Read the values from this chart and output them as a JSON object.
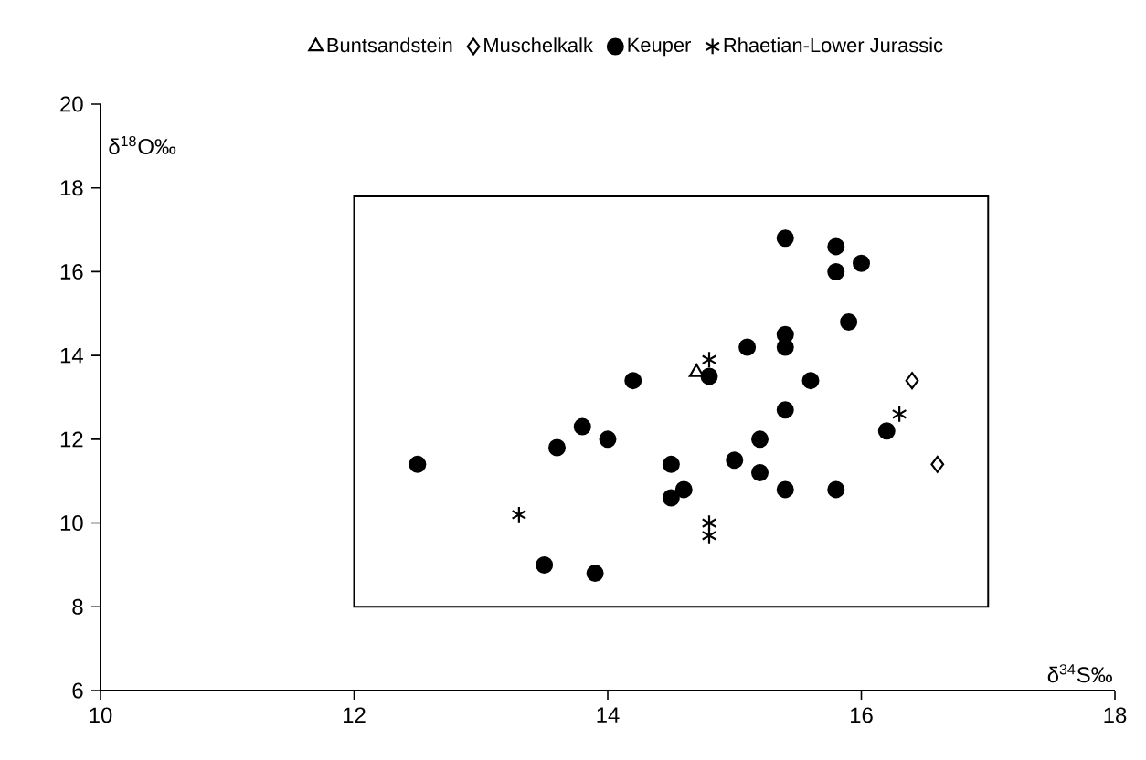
{
  "chart_data": {
    "type": "scatter",
    "xlabel": "δ$^{34}$S‰",
    "ylabel": "δ$^{18}$O‰",
    "xlim": [
      10,
      18
    ],
    "ylim": [
      6,
      20
    ],
    "xticks": [
      10,
      12,
      14,
      16,
      18
    ],
    "yticks": [
      6,
      8,
      10,
      12,
      14,
      16,
      18,
      20
    ],
    "grid": false,
    "legend": "top",
    "series": [
      {
        "name": "Buntsandstein",
        "color": "#000000",
        "marker": "triangle",
        "x": [
          14.7
        ],
        "values": [
          13.6
        ]
      },
      {
        "name": "Muschelkalk",
        "color": "#000000",
        "marker": "diamond",
        "x": [
          16.4,
          16.6
        ],
        "values": [
          13.4,
          11.4
        ]
      },
      {
        "name": "Keuper",
        "color": "#000000",
        "marker": "circle",
        "x": [
          12.5,
          13.5,
          13.9,
          13.6,
          13.8,
          14.0,
          14.2,
          14.5,
          14.5,
          14.6,
          14.8,
          15.0,
          15.1,
          15.2,
          15.2,
          15.4,
          15.8,
          15.8,
          16.0,
          15.9,
          15.4,
          15.4,
          15.6,
          15.4,
          15.4,
          15.8,
          16.2
        ],
        "values": [
          11.4,
          9.0,
          8.8,
          11.8,
          12.3,
          12.0,
          13.4,
          11.4,
          10.6,
          10.8,
          13.5,
          11.5,
          14.2,
          12.0,
          11.2,
          16.8,
          16.6,
          16.0,
          16.2,
          14.8,
          14.5,
          14.2,
          13.4,
          12.7,
          10.8,
          10.8,
          12.2
        ]
      },
      {
        "name": "Rhaetian-Lower Jurassic",
        "color": "#000000",
        "marker": "cross",
        "x": [
          14.8,
          13.3,
          14.8,
          14.8,
          16.3
        ],
        "values": [
          13.9,
          10.2,
          10.0,
          9.7,
          12.6
        ]
      }
    ]
  }
}
